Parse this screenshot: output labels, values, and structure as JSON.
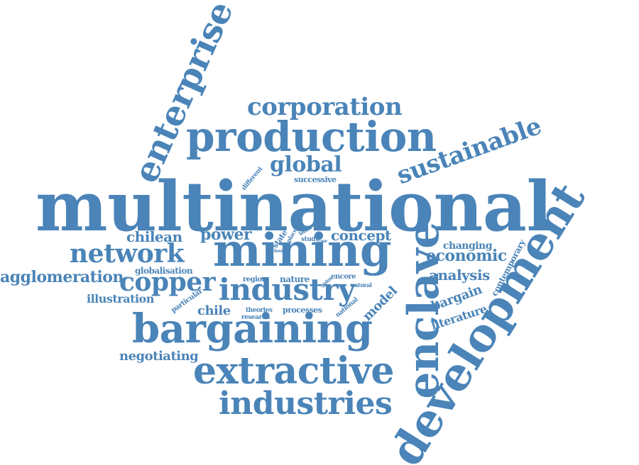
{
  "cloud": {
    "color": "#4a84b8",
    "words": [
      "multinational",
      "development",
      "mining",
      "enclave",
      "production",
      "bargaining",
      "extractive",
      "enterprise",
      "industries",
      "industry",
      "corporation",
      "sustainable",
      "network",
      "copper",
      "global",
      "agglomeration",
      "economic",
      "power",
      "chilean",
      "concept",
      "analysis",
      "negotiating",
      "chile",
      "illustration",
      "literature",
      "bargain",
      "model",
      "contemporary",
      "changing",
      "globalisation",
      "successive",
      "different",
      "processes",
      "nature",
      "region",
      "encore",
      "research",
      "theories",
      "particular",
      "state",
      "national",
      "study",
      "place",
      "latest",
      "natural",
      "gains",
      "case",
      "bout"
    ]
  }
}
